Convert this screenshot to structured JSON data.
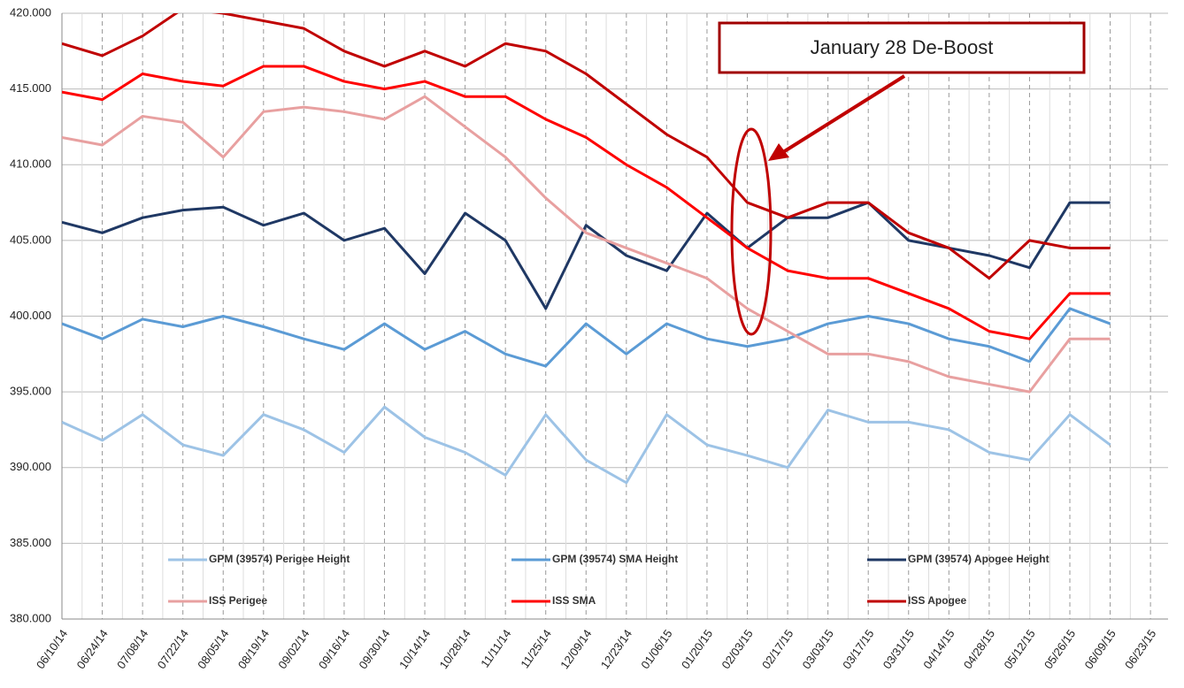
{
  "chart_data": {
    "type": "line",
    "annotation": "January 28 De-Boost",
    "categories": [
      "06/10/14",
      "06/24/14",
      "07/08/14",
      "07/22/14",
      "08/05/14",
      "08/19/14",
      "09/02/14",
      "09/16/14",
      "09/30/14",
      "10/14/14",
      "10/28/14",
      "11/11/14",
      "11/25/14",
      "12/09/14",
      "12/23/14",
      "01/06/15",
      "01/20/15",
      "02/03/15",
      "02/17/15",
      "03/03/15",
      "03/17/15",
      "03/31/15",
      "04/14/15",
      "04/28/15",
      "05/12/15",
      "05/26/15",
      "06/09/15",
      "06/23/15"
    ],
    "series": [
      {
        "name": "GPM (39574) Perigee Height",
        "color": "#9dc3e6",
        "values": [
          393.0,
          391.8,
          393.5,
          391.5,
          390.8,
          393.5,
          392.5,
          391.0,
          394.0,
          392.0,
          391.0,
          389.5,
          393.5,
          390.5,
          389.0,
          393.5,
          391.5,
          390.8,
          390.0,
          393.8,
          393.0,
          393.0,
          392.5,
          391.0,
          390.5,
          393.5,
          391.5,
          null
        ]
      },
      {
        "name": "GPM (39574) SMA Height",
        "color": "#5b9bd5",
        "values": [
          399.5,
          398.5,
          399.8,
          399.3,
          400.0,
          399.3,
          398.5,
          397.8,
          399.5,
          397.8,
          399.0,
          397.5,
          396.7,
          399.5,
          397.5,
          399.5,
          398.5,
          398.0,
          398.5,
          399.5,
          400.0,
          399.5,
          398.5,
          398.0,
          397.0,
          400.5,
          399.5,
          null
        ]
      },
      {
        "name": "GPM (39574) Apogee Height",
        "color": "#1f3864",
        "values": [
          406.2,
          405.5,
          406.5,
          407.0,
          407.2,
          406.0,
          406.8,
          405.0,
          405.8,
          402.8,
          406.8,
          405.0,
          400.5,
          406.0,
          404.0,
          403.0,
          406.8,
          404.5,
          406.5,
          406.5,
          407.5,
          405.0,
          404.5,
          404.0,
          403.2,
          407.5,
          407.5,
          null
        ]
      },
      {
        "name": "ISS Perigee",
        "color": "#e8a0a0",
        "values": [
          411.8,
          411.3,
          413.2,
          412.8,
          410.5,
          413.5,
          413.8,
          413.5,
          413.0,
          414.5,
          412.5,
          410.5,
          407.8,
          405.5,
          404.5,
          403.5,
          402.5,
          400.5,
          399.0,
          397.5,
          397.5,
          397.0,
          396.0,
          395.5,
          395.0,
          398.5,
          398.5,
          null
        ]
      },
      {
        "name": "ISS SMA",
        "color": "#ff0000",
        "values": [
          414.8,
          414.3,
          416.0,
          415.5,
          415.2,
          416.5,
          416.5,
          415.5,
          415.0,
          415.5,
          414.5,
          414.5,
          413.0,
          411.8,
          410.0,
          408.5,
          406.5,
          404.5,
          403.0,
          402.5,
          402.5,
          401.5,
          400.5,
          399.0,
          398.5,
          401.5,
          401.5,
          null
        ]
      },
      {
        "name": "ISS Apogee",
        "color": "#c00000",
        "values": [
          418.0,
          417.2,
          418.5,
          420.3,
          420.0,
          419.5,
          419.0,
          417.5,
          416.5,
          417.5,
          416.5,
          418.0,
          417.5,
          416.0,
          414.0,
          412.0,
          410.5,
          407.5,
          406.5,
          407.5,
          407.5,
          405.5,
          404.5,
          402.5,
          405.0,
          404.5,
          404.5,
          null
        ]
      }
    ],
    "ylim": [
      380,
      420
    ],
    "yticks": [
      {
        "value": 380,
        "label": "380.000"
      },
      {
        "value": 385,
        "label": "385.000"
      },
      {
        "value": 390,
        "label": "390.000"
      },
      {
        "value": 395,
        "label": "395.000"
      },
      {
        "value": 400,
        "label": "400.000"
      },
      {
        "value": 405,
        "label": "405.000"
      },
      {
        "value": 410,
        "label": "410.000"
      },
      {
        "value": 415,
        "label": "415.000"
      },
      {
        "value": 420,
        "label": "420.000"
      }
    ],
    "grid": true
  }
}
